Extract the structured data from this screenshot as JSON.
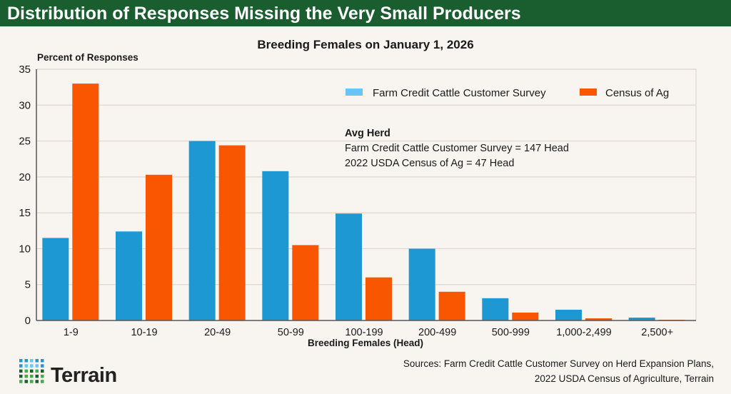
{
  "header": {
    "title": "Distribution of Responses Missing the Very Small Producers"
  },
  "chart_data": {
    "type": "bar",
    "title": "Breeding Females on January 1, 2026",
    "ylabel": "Percent of Responses",
    "xlabel": "Breeding Females (Head)",
    "ylim": [
      0,
      35
    ],
    "yticks": [
      "0",
      "5",
      "10",
      "15",
      "20",
      "25",
      "30",
      "35"
    ],
    "grid": true,
    "legend_position": "top-right",
    "categories": [
      "1-9",
      "10-19",
      "20-49",
      "50-99",
      "100-199",
      "200-499",
      "500-999",
      "1,000-2,499",
      "2,500+"
    ],
    "series": [
      {
        "name": "Farm Credit Cattle Customer Survey",
        "color": "#1e98d3",
        "legend_color": "#66c6f7",
        "values": [
          11.5,
          12.4,
          25.0,
          20.8,
          14.9,
          10.0,
          3.1,
          1.5,
          0.4
        ]
      },
      {
        "name": "Census of Ag",
        "color": "#f95602",
        "values": [
          33.0,
          20.3,
          24.4,
          10.5,
          6.0,
          4.0,
          1.1,
          0.3,
          0.1
        ]
      }
    ],
    "annotation": {
      "heading": "Avg Herd",
      "lines": [
        "Farm Credit Cattle Customer Survey = 147 Head",
        "2022 USDA Census of Ag = 47 Head"
      ]
    }
  },
  "footer": {
    "logo_text": "Terrain",
    "sources": [
      "Sources: Farm Credit Cattle Customer Survey on Herd Expansion Plans,",
      "2022 USDA Census of Agriculture, Terrain"
    ]
  },
  "colors": {
    "header_bg": "#1a5e30",
    "background": "#f8f4f0"
  }
}
